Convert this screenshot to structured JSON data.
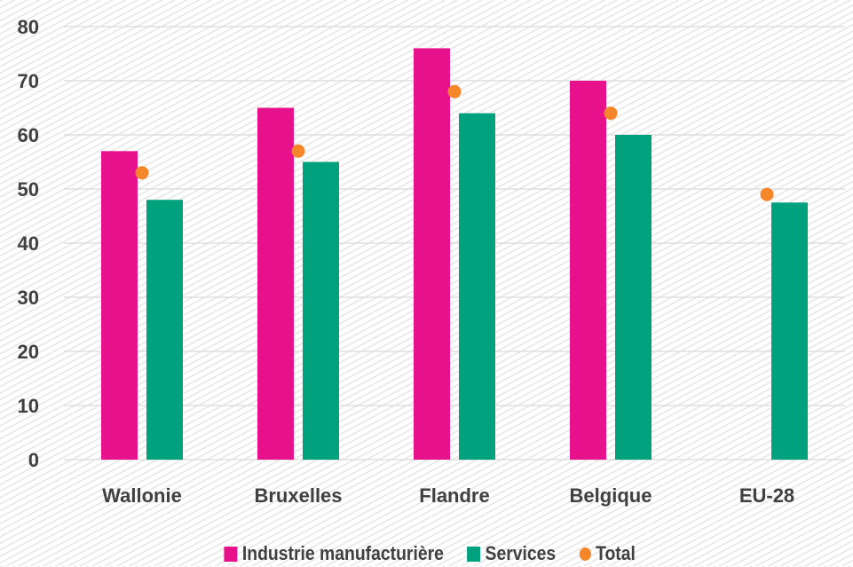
{
  "chart_data": {
    "type": "bar",
    "title": "",
    "xlabel": "",
    "ylabel": "",
    "ylim": [
      0,
      80
    ],
    "yticks": [
      0,
      10,
      20,
      30,
      40,
      50,
      60,
      70,
      80
    ],
    "grid": true,
    "legend_position": "bottom",
    "categories": [
      "Wallonie",
      "Bruxelles",
      "Flandre",
      "Belgique",
      "EU-28"
    ],
    "series": [
      {
        "name": "Industrie manufacturière",
        "kind": "bar",
        "color": "#E8118C",
        "values": [
          57,
          65,
          76,
          70,
          null
        ]
      },
      {
        "name": "Services",
        "kind": "bar",
        "color": "#00A27E",
        "values": [
          48,
          55,
          64,
          60,
          47.5
        ]
      },
      {
        "name": "Total",
        "kind": "marker",
        "color": "#F5862A",
        "values": [
          53,
          57,
          68,
          64,
          49
        ]
      }
    ]
  }
}
